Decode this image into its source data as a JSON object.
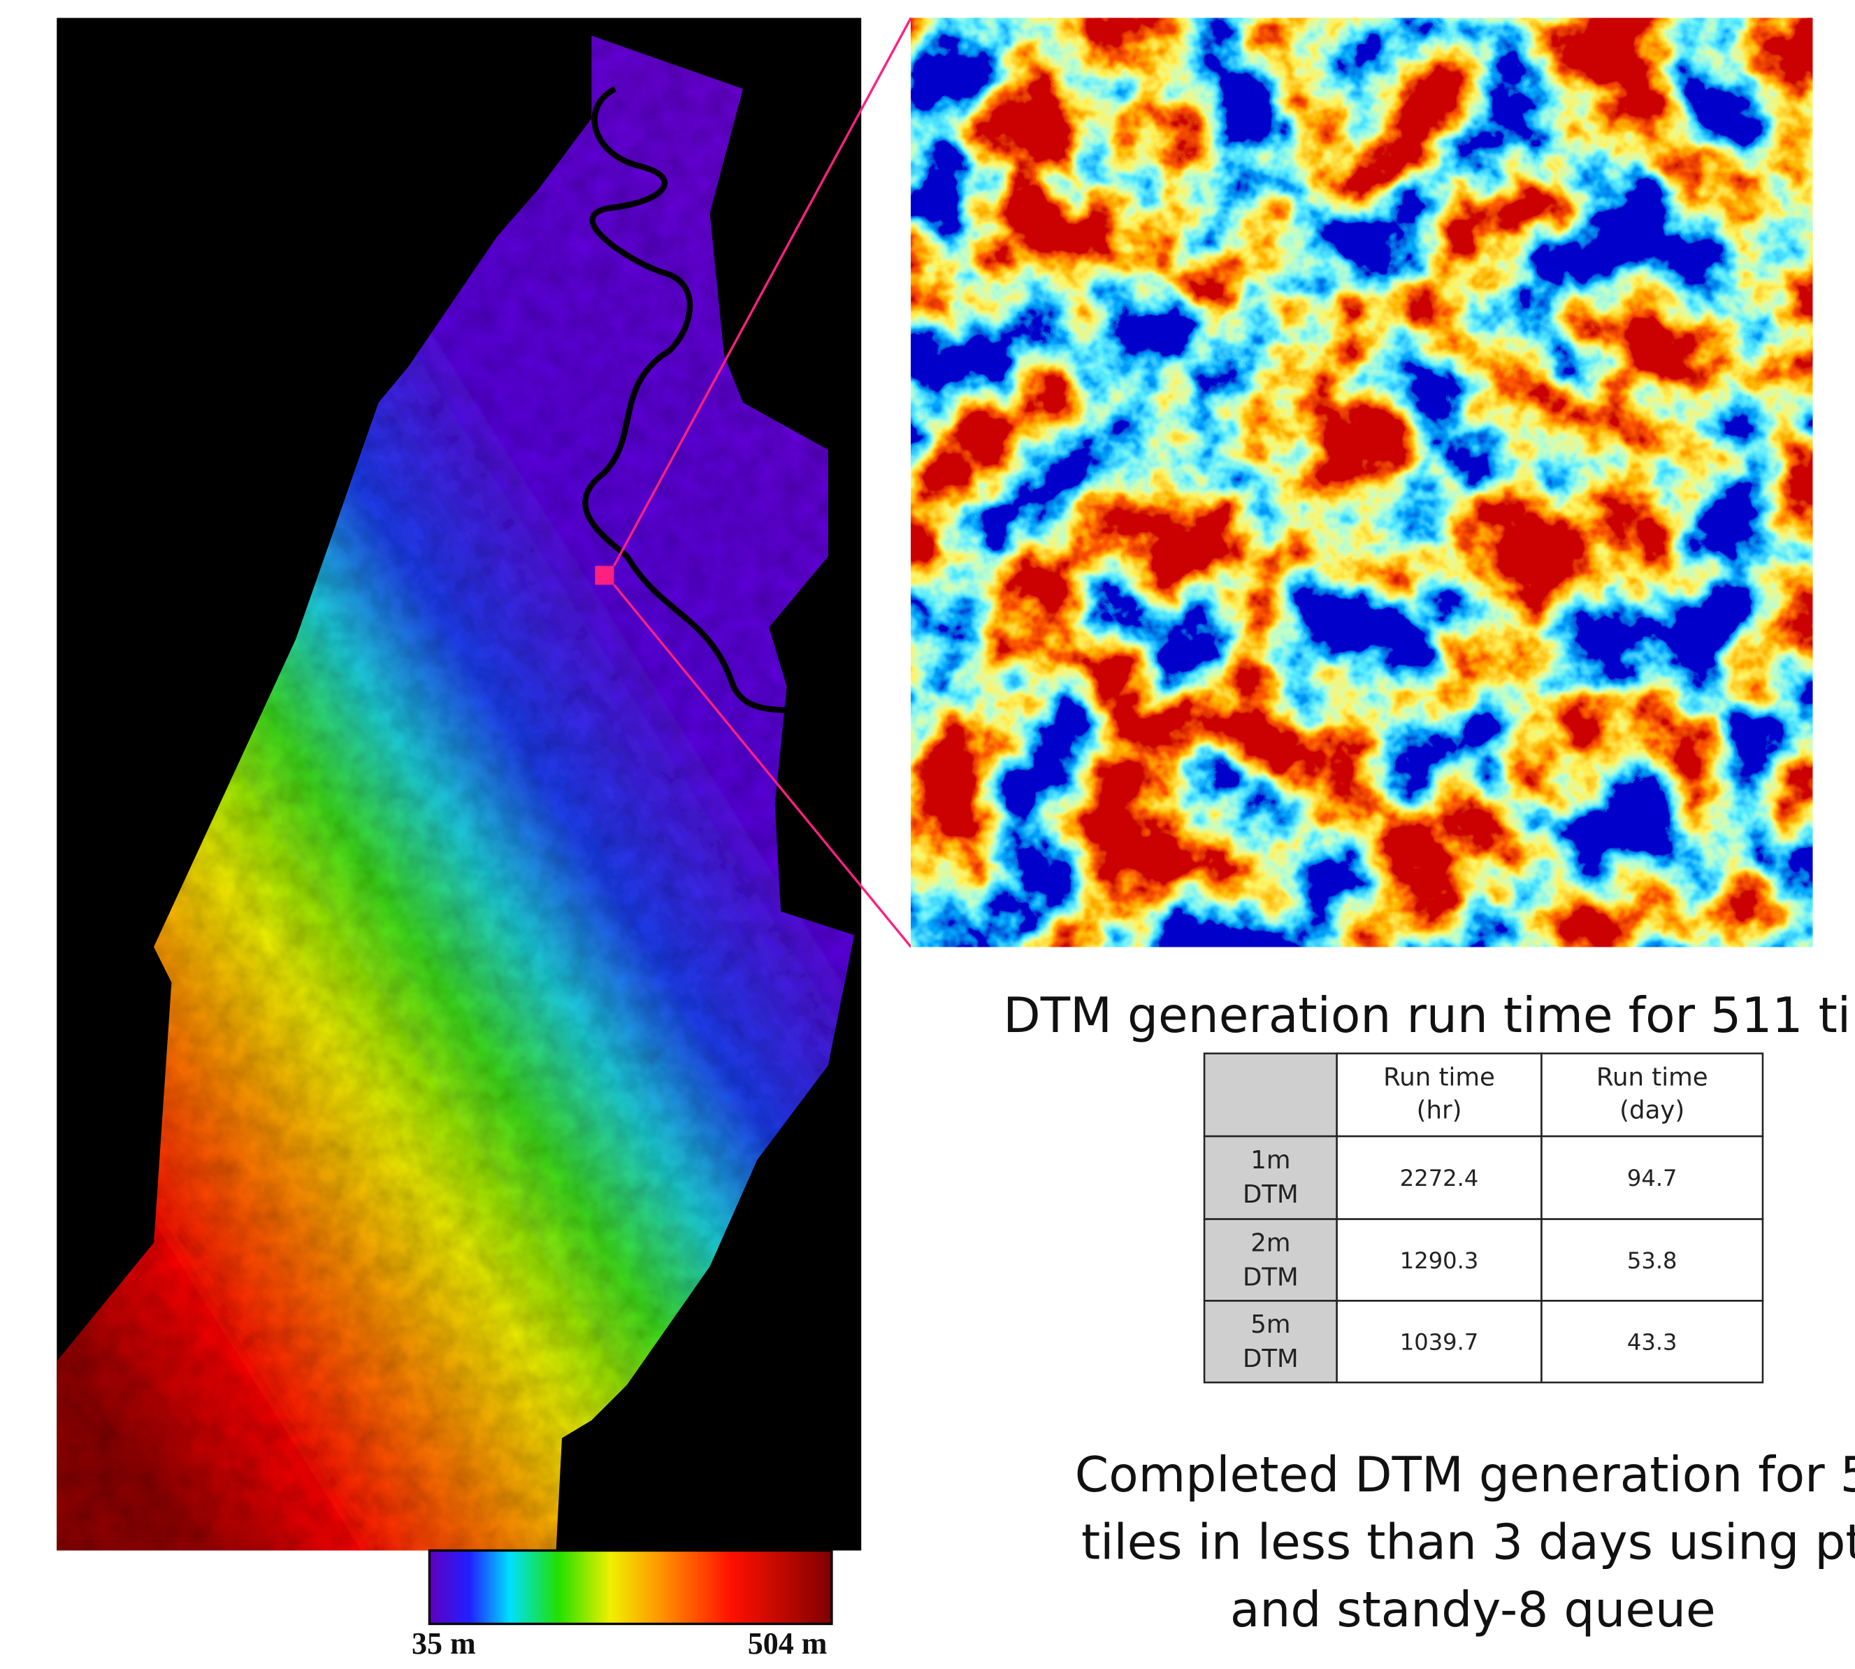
{
  "colorbar": {
    "min_label": "35 m",
    "max_label": "504 m"
  },
  "table_title": "DTM generation run time for 511 ti",
  "table": {
    "columns": [
      [
        "Run time",
        "(hr)"
      ],
      [
        "Run time",
        "(day)"
      ]
    ],
    "rows": [
      {
        "label": [
          "1m",
          "DTM"
        ],
        "cells": [
          2272.4,
          94.7
        ]
      },
      {
        "label": [
          "2m",
          "DTM"
        ],
        "cells": [
          1290.3,
          53.8
        ]
      },
      {
        "label": [
          "5m",
          "DTM"
        ],
        "cells": [
          1039.7,
          43.3
        ]
      }
    ]
  },
  "summary": [
    "Completed DTM generation for 5",
    "tiles in less than 3 days using pt",
    "and standy-8 queue"
  ]
}
